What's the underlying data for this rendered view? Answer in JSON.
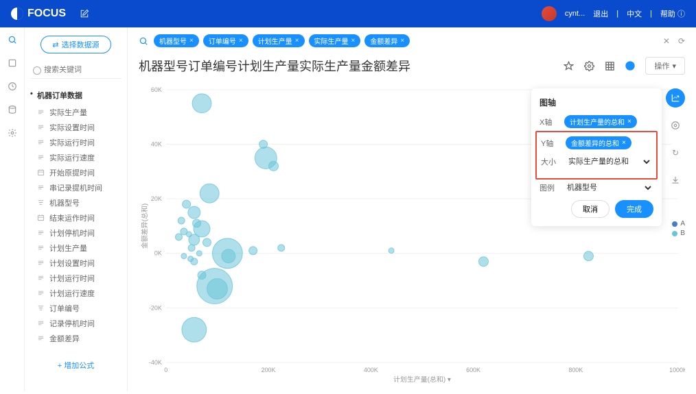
{
  "header": {
    "brand": "FOCUS",
    "user": "cynt...",
    "logout": "退出",
    "lang": "中文",
    "help": "帮助"
  },
  "sidebar": {
    "select_source": "选择数据源",
    "search_placeholder": "搜索关键词",
    "dataset_title": "机器订单数据",
    "fields": [
      {
        "label": "实际生产量",
        "icon": "num"
      },
      {
        "label": "实际设置时间",
        "icon": "num"
      },
      {
        "label": "实际运行时间",
        "icon": "num"
      },
      {
        "label": "实际运行速度",
        "icon": "num"
      },
      {
        "label": "开始原提时间",
        "icon": "cal"
      },
      {
        "label": "串记录提机时间",
        "icon": "num"
      },
      {
        "label": "机器型号",
        "icon": "txt"
      },
      {
        "label": "结束运作时间",
        "icon": "cal"
      },
      {
        "label": "计划停机时间",
        "icon": "num"
      },
      {
        "label": "计划生产量",
        "icon": "num"
      },
      {
        "label": "计划设置时间",
        "icon": "num"
      },
      {
        "label": "计划运行时间",
        "icon": "num"
      },
      {
        "label": "计划运行速度",
        "icon": "num"
      },
      {
        "label": "订单编号",
        "icon": "txt"
      },
      {
        "label": "记录停机时间",
        "icon": "num"
      },
      {
        "label": "金额差异",
        "icon": "num"
      }
    ],
    "add_formula": "+ 增加公式"
  },
  "query": {
    "chips": [
      "机器型号",
      "订单编号",
      "计划生产量",
      "实际生产量",
      "金额差异"
    ]
  },
  "title": "机器型号订单编号计划生产量实际生产量金额差异",
  "op_button": "操作",
  "chart": {
    "type": "scatter",
    "x_label": "计划生产量(总和)",
    "y_label": "金额差异(总和)",
    "x_ticks": [
      0,
      "200K",
      "400K",
      "600K",
      "800K",
      "1000K"
    ],
    "x_tick_vals": [
      0,
      200,
      400,
      600,
      800,
      1000
    ],
    "y_ticks": [
      "-40K",
      "-20K",
      "0K",
      "20K",
      "40K",
      "60K"
    ],
    "y_tick_vals": [
      -40,
      -20,
      0,
      20,
      40,
      60
    ],
    "xlim": [
      0,
      1000
    ],
    "ylim": [
      -40,
      60
    ],
    "bubble_color": "#6bc5d8",
    "bubble_opacity": 0.55,
    "points": [
      {
        "x": 70,
        "y": 55,
        "r": 14
      },
      {
        "x": 190,
        "y": 40,
        "r": 6
      },
      {
        "x": 195,
        "y": 35,
        "r": 16
      },
      {
        "x": 210,
        "y": 32,
        "r": 7
      },
      {
        "x": 85,
        "y": 22,
        "r": 14
      },
      {
        "x": 40,
        "y": 18,
        "r": 6
      },
      {
        "x": 55,
        "y": 15,
        "r": 9
      },
      {
        "x": 30,
        "y": 12,
        "r": 5
      },
      {
        "x": 60,
        "y": 11,
        "r": 6
      },
      {
        "x": 70,
        "y": 9,
        "r": 12
      },
      {
        "x": 35,
        "y": 8,
        "r": 5
      },
      {
        "x": 45,
        "y": 7,
        "r": 4
      },
      {
        "x": 25,
        "y": 6,
        "r": 5
      },
      {
        "x": 55,
        "y": 5,
        "r": 8
      },
      {
        "x": 80,
        "y": 4,
        "r": 6
      },
      {
        "x": 50,
        "y": 2,
        "r": 5
      },
      {
        "x": 65,
        "y": 0,
        "r": 4
      },
      {
        "x": 35,
        "y": -1,
        "r": 4
      },
      {
        "x": 48,
        "y": -2,
        "r": 4
      },
      {
        "x": 55,
        "y": -3,
        "r": 5
      },
      {
        "x": 120,
        "y": 0,
        "r": 22
      },
      {
        "x": 122,
        "y": -1,
        "r": 10
      },
      {
        "x": 170,
        "y": 1,
        "r": 6
      },
      {
        "x": 225,
        "y": 2,
        "r": 5
      },
      {
        "x": 440,
        "y": 1,
        "r": 4
      },
      {
        "x": 70,
        "y": -8,
        "r": 6
      },
      {
        "x": 95,
        "y": -12,
        "r": 26
      },
      {
        "x": 100,
        "y": -13,
        "r": 15
      },
      {
        "x": 55,
        "y": -28,
        "r": 18
      },
      {
        "x": 620,
        "y": -3,
        "r": 7
      },
      {
        "x": 825,
        "y": -1,
        "r": 7
      }
    ]
  },
  "config": {
    "panel_title": "图轴",
    "x_label": "X轴",
    "x_chip": "计划生产量的总和",
    "y_label": "Y轴",
    "y_chip": "金额差异的总和",
    "size_label": "大小",
    "size_value": "实际生产量的总和",
    "legend_label": "图例",
    "legend_value": "机器型号",
    "cancel": "取消",
    "confirm": "完成"
  },
  "legend": {
    "items": [
      {
        "label": "A",
        "color": "#4a7bc8"
      },
      {
        "label": "B",
        "color": "#6bc5d8"
      }
    ]
  }
}
